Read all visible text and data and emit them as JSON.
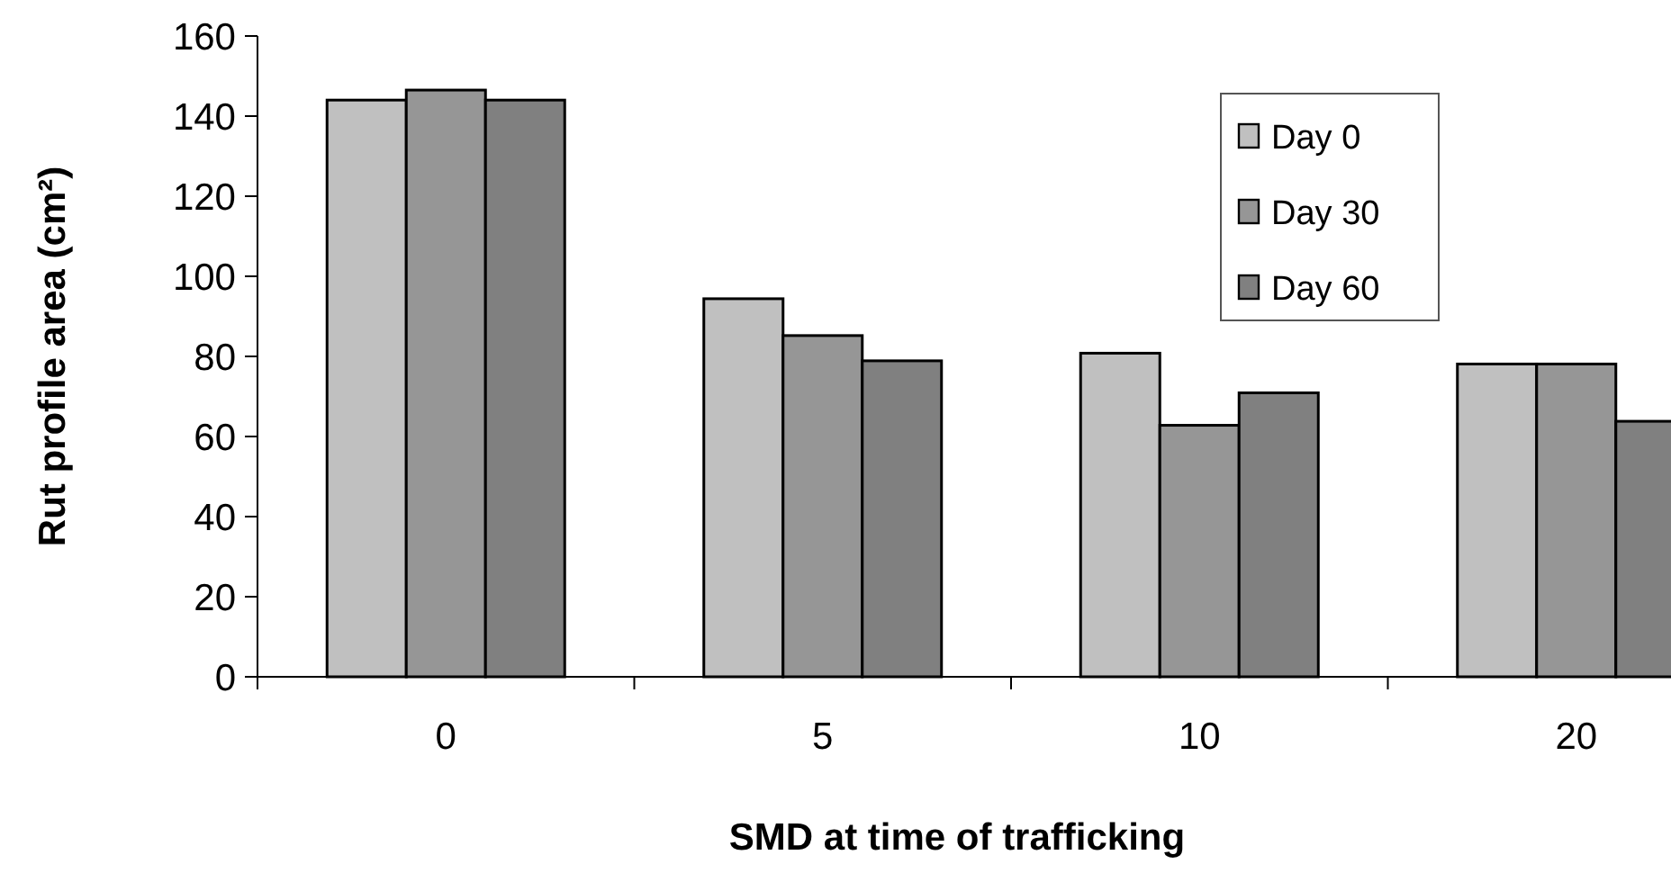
{
  "chart_data": {
    "type": "bar",
    "xlabel": "SMD at time of trafficking",
    "ylabel": "Rut profile area (cm²)",
    "categories": [
      "0",
      "5",
      "10",
      "20"
    ],
    "series": [
      {
        "name": "Day 0",
        "color": "#c0c0c0",
        "values": [
          144,
          94.4,
          80.8,
          78.1
        ]
      },
      {
        "name": "Day 30",
        "color": "#969696",
        "values": [
          146.5,
          85.2,
          62.8,
          78.1
        ]
      },
      {
        "name": "Day 60",
        "color": "#808080",
        "values": [
          144,
          78.9,
          70.9,
          63.8
        ]
      }
    ],
    "ylim": [
      0,
      160
    ],
    "yticks": [
      0,
      20,
      40,
      60,
      80,
      100,
      120,
      140,
      160
    ],
    "grid": false,
    "legend": "top right"
  }
}
